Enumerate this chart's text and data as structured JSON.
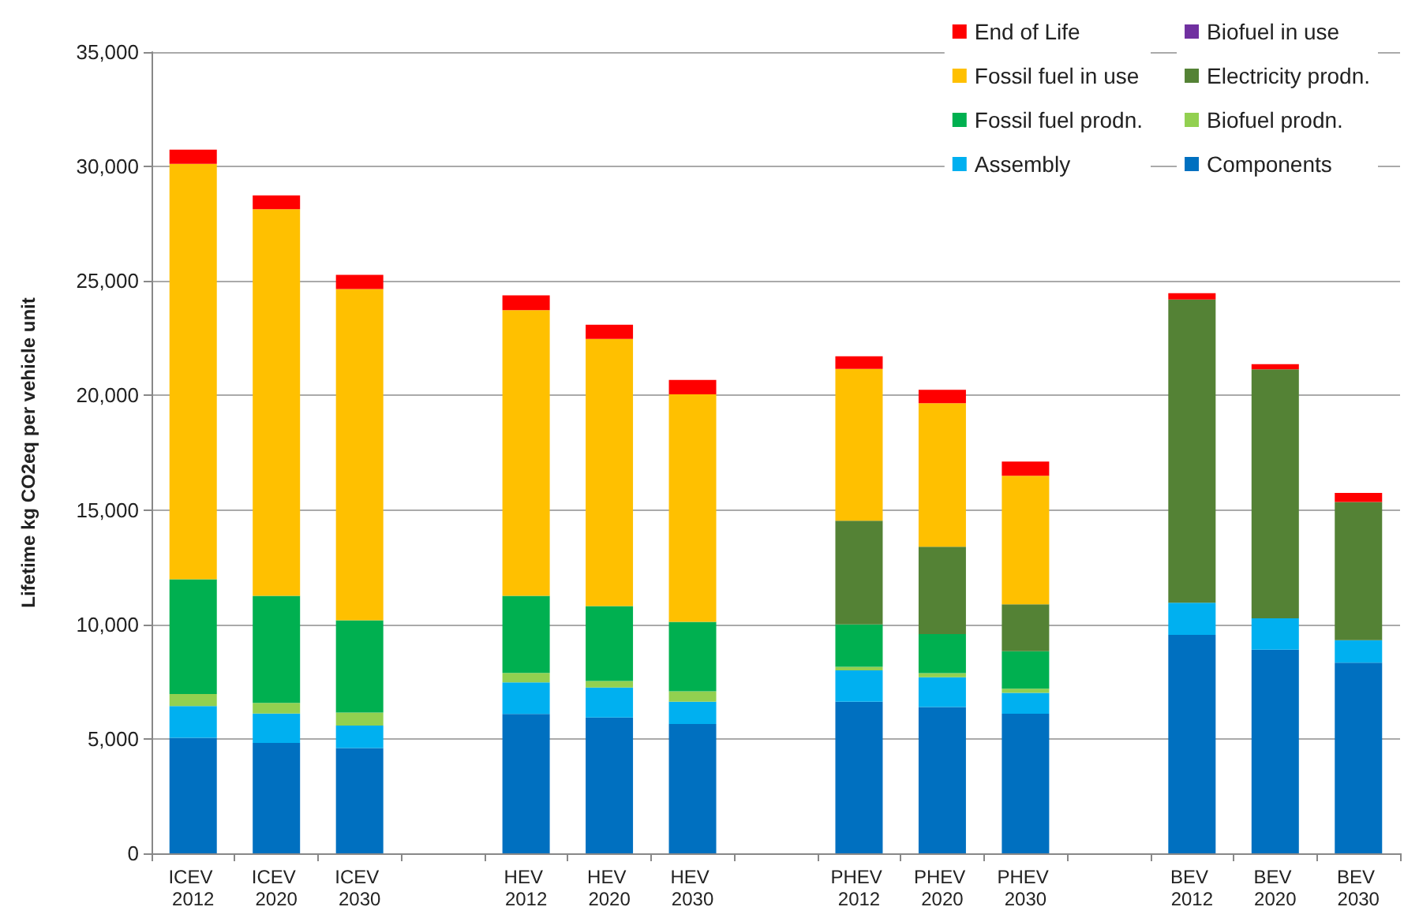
{
  "chart_data": {
    "type": "bar",
    "stacked": true,
    "ylabel": "Lifetime kg CO2eq per vehicle unit",
    "categories": [
      "ICEV 2012",
      "ICEV 2020",
      "ICEV 2030",
      null,
      "HEV 2012",
      "HEV 2020",
      "HEV 2030",
      null,
      "PHEV 2012",
      "PHEV 2020",
      "PHEV 2030",
      null,
      "BEV 2012",
      "BEV 2020",
      "BEV 2030"
    ],
    "series": [
      {
        "name": "Components",
        "color": "#0070c0",
        "values": [
          5050,
          4820,
          4600,
          null,
          6090,
          5930,
          5650,
          null,
          6620,
          6390,
          6100,
          null,
          9540,
          8900,
          8330
        ]
      },
      {
        "name": "Assembly",
        "color": "#00b0f0",
        "values": [
          1380,
          1290,
          980,
          null,
          1380,
          1310,
          970,
          null,
          1370,
          1300,
          910,
          null,
          1410,
          1370,
          980
        ]
      },
      {
        "name": "Biofuel prodn.",
        "color": "#92d050",
        "values": [
          530,
          460,
          570,
          null,
          410,
          290,
          460,
          null,
          160,
          180,
          180,
          null,
          null,
          null,
          null
        ]
      },
      {
        "name": "Fossil fuel prodn.",
        "color": "#00b050",
        "values": [
          5010,
          4680,
          4030,
          null,
          3370,
          3270,
          3030,
          null,
          1850,
          1710,
          1640,
          null,
          null,
          null,
          null
        ]
      },
      {
        "name": "Electricity prodn.",
        "color": "#548235",
        "values": [
          null,
          null,
          null,
          null,
          null,
          null,
          null,
          null,
          4530,
          3810,
          2050,
          null,
          13240,
          10870,
          6040
        ]
      },
      {
        "name": "Fossil fuel in use",
        "color": "#ffc000",
        "values": [
          18150,
          16890,
          14470,
          null,
          12480,
          11670,
          9940,
          null,
          6630,
          6270,
          5610,
          null,
          null,
          null,
          null
        ]
      },
      {
        "name": "Biofuel in use",
        "color": "#7030a0",
        "values": [
          null,
          null,
          null,
          null,
          null,
          null,
          null,
          null,
          null,
          null,
          null,
          null,
          null,
          null,
          null
        ]
      },
      {
        "name": "End of Life",
        "color": "#ff0000",
        "values": [
          620,
          600,
          620,
          null,
          640,
          620,
          630,
          null,
          550,
          590,
          620,
          null,
          280,
          230,
          390
        ]
      }
    ],
    "ylim": [
      0,
      35000
    ],
    "yticks": [
      0,
      {
        "value": 5000,
        "label": "5,000"
      },
      {
        "value": 10000,
        "label": "10,000"
      },
      {
        "value": 15000,
        "label": "15,000"
      },
      {
        "value": 20000,
        "label": "20,000"
      },
      {
        "value": 25000,
        "label": "25,000"
      },
      {
        "value": 30000,
        "label": "30,000"
      },
      {
        "value": 35000,
        "label": "35,000"
      }
    ],
    "grid": "y",
    "legend": "top right"
  }
}
